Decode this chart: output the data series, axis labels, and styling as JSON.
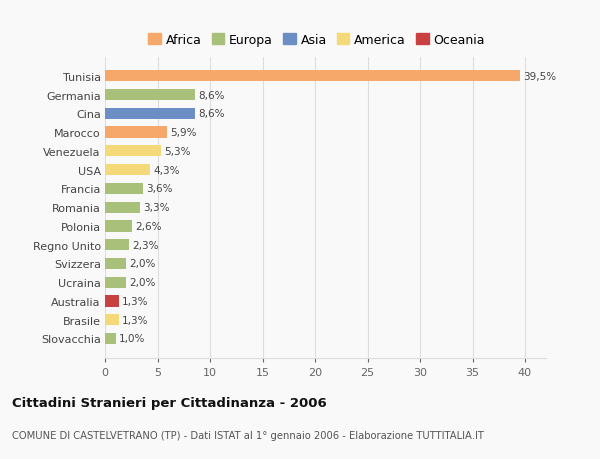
{
  "countries": [
    "Tunisia",
    "Germania",
    "Cina",
    "Marocco",
    "Venezuela",
    "USA",
    "Francia",
    "Romania",
    "Polonia",
    "Regno Unito",
    "Svizzera",
    "Ucraina",
    "Australia",
    "Brasile",
    "Slovacchia"
  ],
  "values": [
    39.5,
    8.6,
    8.6,
    5.9,
    5.3,
    4.3,
    3.6,
    3.3,
    2.6,
    2.3,
    2.0,
    2.0,
    1.3,
    1.3,
    1.0
  ],
  "labels": [
    "39,5%",
    "8,6%",
    "8,6%",
    "5,9%",
    "5,3%",
    "4,3%",
    "3,6%",
    "3,3%",
    "2,6%",
    "2,3%",
    "2,0%",
    "2,0%",
    "1,3%",
    "1,3%",
    "1,0%"
  ],
  "colors": [
    "#F5A86A",
    "#A8C07A",
    "#6B8FC4",
    "#F5A86A",
    "#F5D878",
    "#F5D878",
    "#A8C07A",
    "#A8C07A",
    "#A8C07A",
    "#A8C07A",
    "#A8C07A",
    "#A8C07A",
    "#C94040",
    "#F5D878",
    "#A8C07A"
  ],
  "legend_labels": [
    "Africa",
    "Europa",
    "Asia",
    "America",
    "Oceania"
  ],
  "legend_colors": [
    "#F5A86A",
    "#A8C07A",
    "#6B8FC4",
    "#F5D878",
    "#C94040"
  ],
  "xlim": [
    0,
    42
  ],
  "xticks": [
    0,
    5,
    10,
    15,
    20,
    25,
    30,
    35,
    40
  ],
  "title": "Cittadini Stranieri per Cittadinanza - 2006",
  "subtitle": "COMUNE DI CASTELVETRANO (TP) - Dati ISTAT al 1° gennaio 2006 - Elaborazione TUTTITALIA.IT",
  "bg_color": "#f9f9f9",
  "bar_height": 0.6,
  "grid_color": "#dddddd"
}
